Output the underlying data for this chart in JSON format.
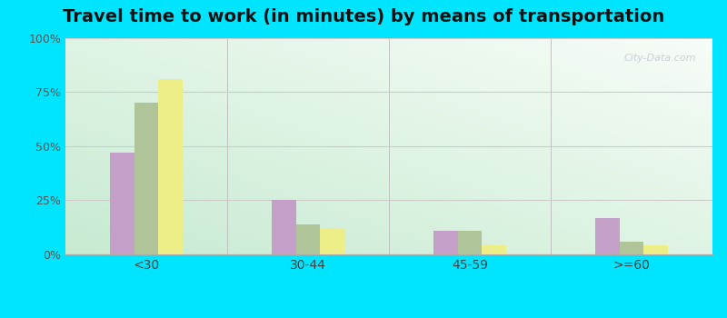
{
  "title": "Travel time to work (in minutes) by means of transportation",
  "categories": [
    "<30",
    "30-44",
    "45-59",
    ">=60"
  ],
  "series": {
    "Public transportation - Nebraska": [
      47,
      25,
      11,
      17
    ],
    "Other means - St. Edward": [
      70,
      14,
      11,
      6
    ],
    "Other means - Nebraska": [
      81,
      12,
      4,
      4
    ]
  },
  "colors": {
    "Public transportation - Nebraska": "#c4a0c8",
    "Other means - St. Edward": "#b0c49a",
    "Other means - Nebraska": "#eeee88"
  },
  "ylim": [
    0,
    100
  ],
  "yticks": [
    0,
    25,
    50,
    75,
    100
  ],
  "ytick_labels": [
    "0%",
    "25%",
    "50%",
    "75%",
    "100%"
  ],
  "figure_background": "#00e5ff",
  "title_fontsize": 14,
  "bar_width": 0.15,
  "watermark": "City-Data.com"
}
